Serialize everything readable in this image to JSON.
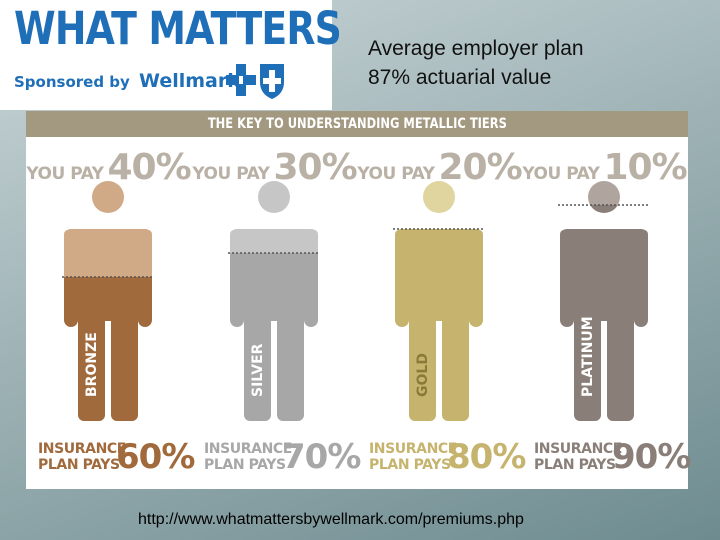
{
  "logo": {
    "title": "WHAT MATTERS",
    "sponsor_prefix": "Sponsored by",
    "sponsor_brand": "Wellmark."
  },
  "headline": {
    "line1": "Average employer plan",
    "line2": "87% actuarial value"
  },
  "panel": {
    "title": "THE KEY TO UNDERSTANDING METALLIC TIERS",
    "you_pay_label": "YOU PAY",
    "plan_pays_line1": "INSURANCE",
    "plan_pays_line2": "PLAN PAYS",
    "tiers": [
      {
        "name": "BRONZE",
        "you_pay": "40%",
        "plan_pays": "60%",
        "you_pay_fraction": 0.4,
        "color": "#a06a3c",
        "light": "#d0a987"
      },
      {
        "name": "SILVER",
        "you_pay": "30%",
        "plan_pays": "70%",
        "you_pay_fraction": 0.3,
        "color": "#a7a7a7",
        "light": "#c6c6c6"
      },
      {
        "name": "GOLD",
        "you_pay": "20%",
        "plan_pays": "80%",
        "you_pay_fraction": 0.2,
        "color": "#c6b46e",
        "light": "#e0d49f"
      },
      {
        "name": "PLATINUM",
        "you_pay": "10%",
        "plan_pays": "90%",
        "you_pay_fraction": 0.1,
        "color": "#8a7f78",
        "light": "#b0a59e"
      }
    ]
  },
  "colors": {
    "brand_blue": "#1e6fb8",
    "header_band": "#a39880",
    "muted_text": "#b9b1a5"
  },
  "footer": {
    "url": "http://www.whatmattersbywellmark.com/premiums.php"
  }
}
